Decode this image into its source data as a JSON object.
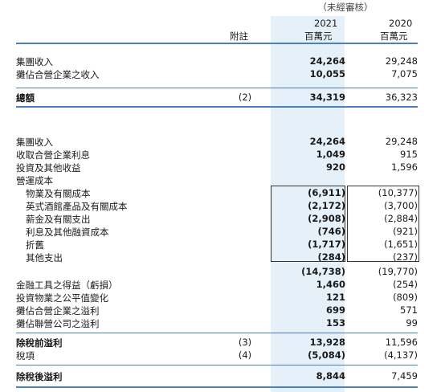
{
  "header": {
    "unaudited": "（未經審核）",
    "year_2021": "2021",
    "year_2020": "2020",
    "unit_2021": "百萬元",
    "unit_2020": "百萬元",
    "notes_col": "附註"
  },
  "section1": [
    {
      "label": "集團收入",
      "note": "",
      "v2021": "24,264",
      "v2020": "29,248"
    },
    {
      "label": "攤佔合營企業之收入",
      "note": "",
      "v2021": "10,055",
      "v2020": "7,075"
    }
  ],
  "total": {
    "label": "總額",
    "note": "(2)",
    "v2021": "34,319",
    "v2020": "36,323"
  },
  "section2": [
    {
      "label": "集團收入",
      "note": "",
      "v2021": "24,264",
      "v2020": "29,248",
      "indent": false
    },
    {
      "label": "收取合營企業利息",
      "note": "",
      "v2021": "1,049",
      "v2020": "915",
      "indent": false
    },
    {
      "label": "投資及其他收益",
      "note": "",
      "v2021": "920",
      "v2020": "1,596",
      "indent": false
    },
    {
      "label": "營運成本",
      "note": "",
      "v2021": "",
      "v2020": "",
      "indent": false
    },
    {
      "label": "物業及有關成本",
      "note": "",
      "v2021": "(6,911)",
      "v2020": "(10,377)",
      "indent": true
    },
    {
      "label": "英式酒館產品及有關成本",
      "note": "",
      "v2021": "(2,172)",
      "v2020": "(3,700)",
      "indent": true
    },
    {
      "label": "薪金及有關支出",
      "note": "",
      "v2021": "(2,908)",
      "v2020": "(2,884)",
      "indent": true
    },
    {
      "label": "利息及其他融資成本",
      "note": "",
      "v2021": "(746)",
      "v2020": "(921)",
      "indent": true
    },
    {
      "label": "折舊",
      "note": "",
      "v2021": "(1,717)",
      "v2020": "(1,651)",
      "indent": true
    },
    {
      "label": "其他支出",
      "note": "",
      "v2021": "(284)",
      "v2020": "(237)",
      "indent": true
    }
  ],
  "subtotal": {
    "v2021": "(14,738)",
    "v2020": "(19,770)"
  },
  "section3": [
    {
      "label": "金融工具之得益（虧損）",
      "note": "",
      "v2021": "1,460",
      "v2020": "(254)"
    },
    {
      "label": "投資物業之公平值變化",
      "note": "",
      "v2021": "121",
      "v2020": "(809)"
    },
    {
      "label": "攤佔合營企業之溢利",
      "note": "",
      "v2021": "699",
      "v2020": "571"
    },
    {
      "label": "攤佔聯營公司之溢利",
      "note": "",
      "v2021": "153",
      "v2020": "99"
    }
  ],
  "pbt": {
    "label": "除稅前溢利",
    "note": "(3)",
    "v2021": "13,928",
    "v2020": "11,596"
  },
  "tax": {
    "label": "稅項",
    "note": "(4)",
    "v2021": "(5,084)",
    "v2020": "(4,137)"
  },
  "pat": {
    "label": "除稅後溢利",
    "note": "",
    "v2021": "8,844",
    "v2020": "7,459"
  }
}
